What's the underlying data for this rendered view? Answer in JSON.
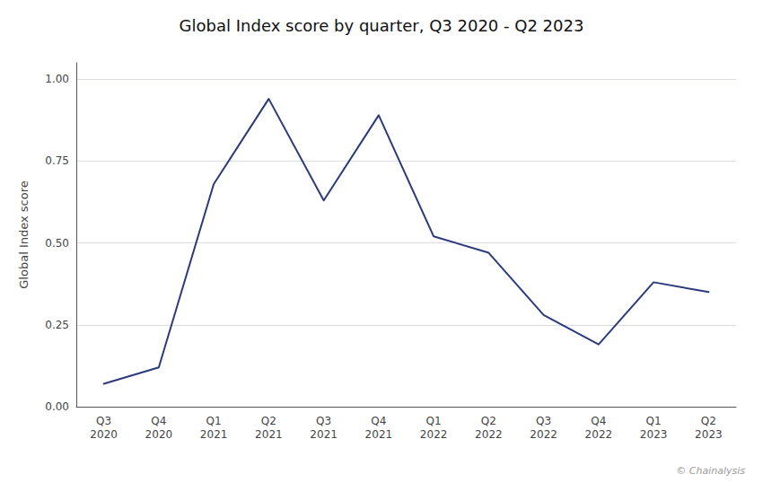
{
  "chart_data": {
    "type": "line",
    "title": "Global Index score by quarter, Q3 2020 - Q2 2023",
    "ylabel": "Global Index score",
    "categories": [
      "Q3\n2020",
      "Q4\n2020",
      "Q1\n2021",
      "Q2\n2021",
      "Q3\n2021",
      "Q4\n2021",
      "Q1\n2022",
      "Q2\n2022",
      "Q3\n2022",
      "Q4\n2022",
      "Q1\n2023",
      "Q2\n2023"
    ],
    "values": [
      0.07,
      0.12,
      0.68,
      0.94,
      0.63,
      0.89,
      0.52,
      0.47,
      0.28,
      0.19,
      0.38,
      0.35
    ],
    "color": "#2b3a7a",
    "ylim": [
      0.0,
      1.05
    ],
    "yticks": [
      {
        "value": 0,
        "label": "0.00"
      },
      0.25,
      {
        "value": 0.5,
        "label": "0.50"
      },
      0.75,
      {
        "value": 1,
        "label": "1.00"
      }
    ],
    "grid": true,
    "annotations": [
      "© Chainalysis"
    ]
  }
}
